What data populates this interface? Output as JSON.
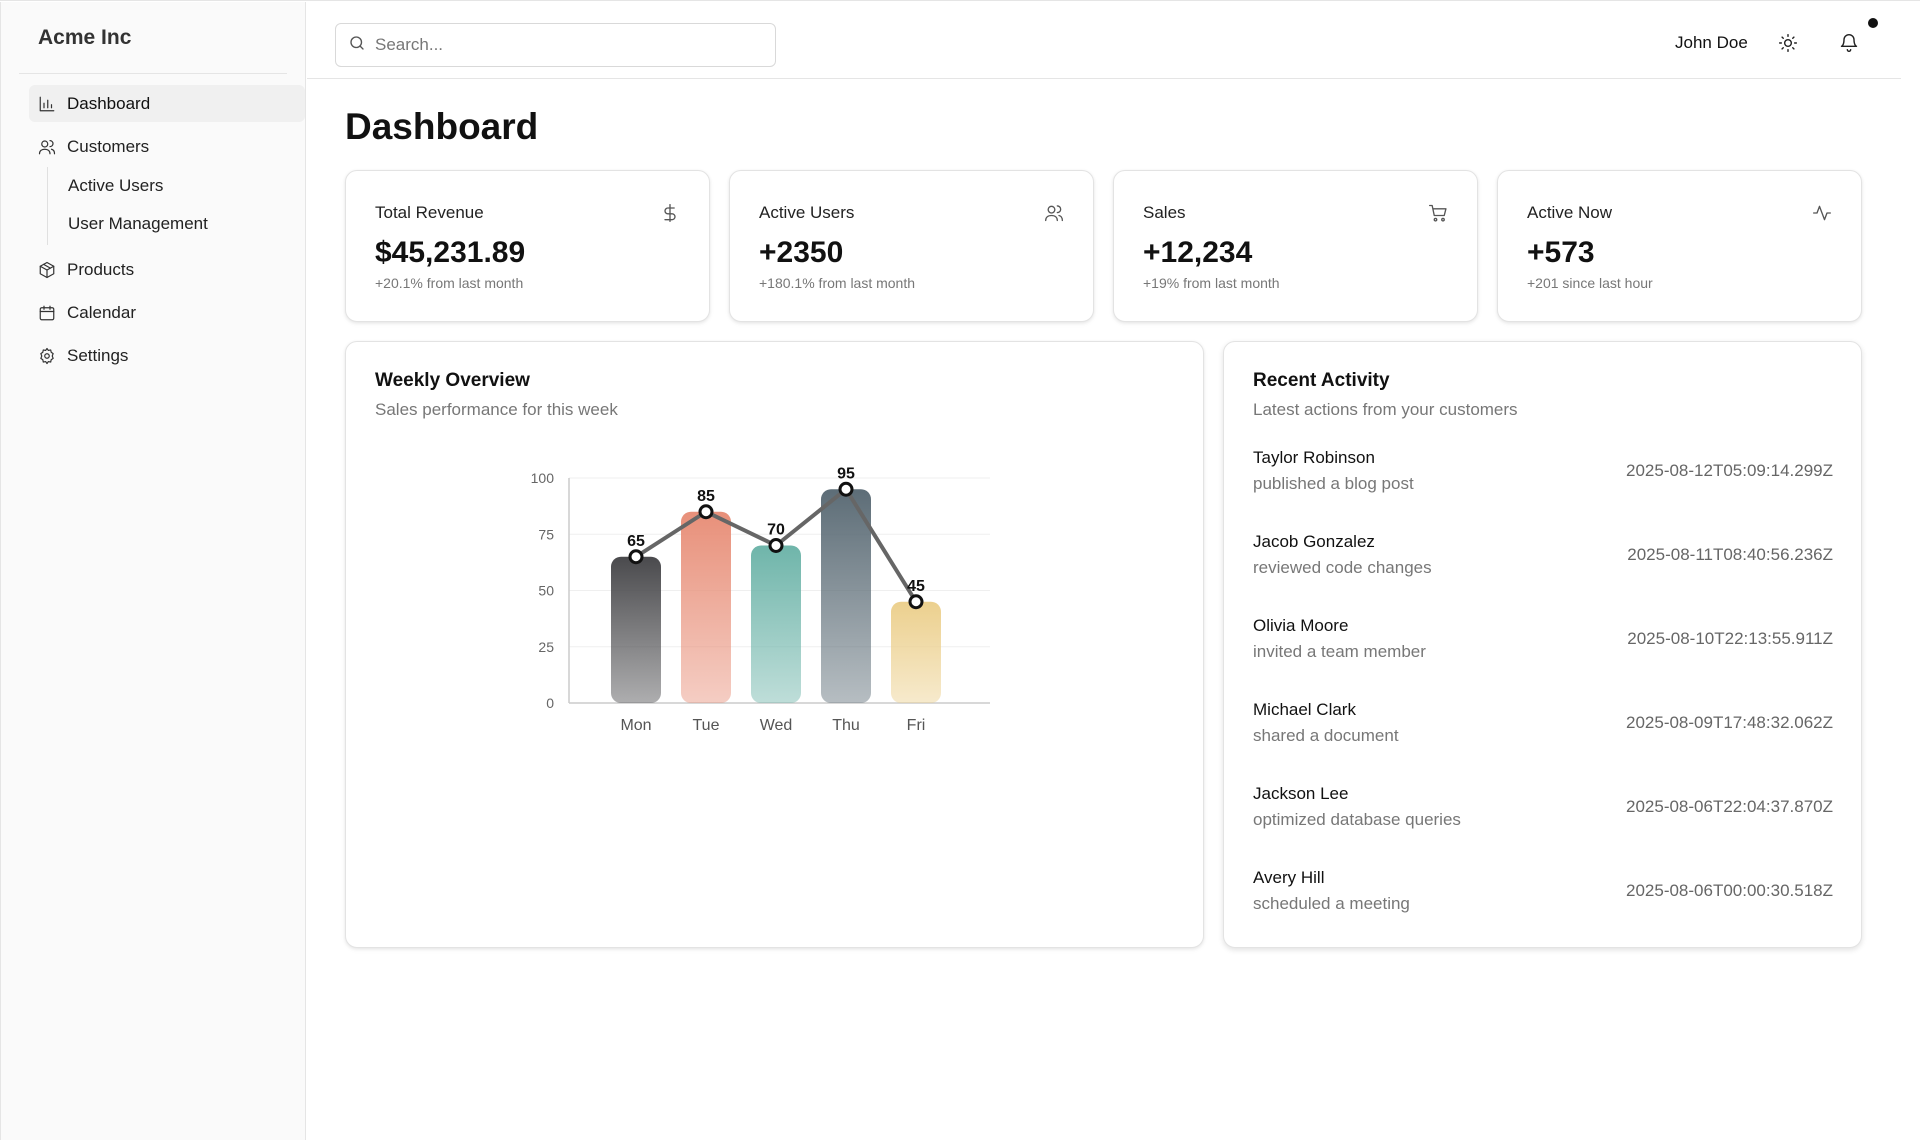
{
  "brand": "Acme Inc",
  "sidebar": {
    "items": [
      {
        "label": "Dashboard",
        "icon": "bar-chart-icon"
      },
      {
        "label": "Customers",
        "icon": "users-icon"
      },
      {
        "label": "Products",
        "icon": "package-icon"
      },
      {
        "label": "Calendar",
        "icon": "calendar-icon"
      },
      {
        "label": "Settings",
        "icon": "gear-icon"
      }
    ],
    "sub_items": [
      {
        "label": "Active Users"
      },
      {
        "label": "User Management"
      }
    ],
    "active": "Dashboard"
  },
  "header": {
    "search_placeholder": "Search...",
    "user_name": "John Doe",
    "theme_icon": "sun-icon",
    "notification_icon": "bell-icon"
  },
  "page": {
    "title": "Dashboard"
  },
  "stats": [
    {
      "title": "Total Revenue",
      "value": "$45,231.89",
      "sub": "+20.1% from last month",
      "icon": "dollar-icon"
    },
    {
      "title": "Active Users",
      "value": "+2350",
      "sub": "+180.1% from last month",
      "icon": "users-icon"
    },
    {
      "title": "Sales",
      "value": "+12,234",
      "sub": "+19% from last month",
      "icon": "cart-icon"
    },
    {
      "title": "Active Now",
      "value": "+573",
      "sub": "+201 since last hour",
      "icon": "activity-icon"
    }
  ],
  "overview": {
    "title": "Weekly Overview",
    "description": "Sales performance for this week"
  },
  "chart_data": {
    "type": "bar",
    "categories": [
      "Mon",
      "Tue",
      "Wed",
      "Thu",
      "Fri"
    ],
    "values": [
      65,
      85,
      70,
      95,
      45
    ],
    "line_overlay": true,
    "ylim": [
      0,
      100
    ],
    "yticks": [
      0,
      25,
      50,
      75,
      100
    ],
    "grid": true,
    "title": "",
    "xlabel": "",
    "ylabel": "",
    "colors": [
      "#4a4a4d",
      "#e8907a",
      "#6fb5aa",
      "#5d6d77",
      "#ecd08e"
    ],
    "line_color": "#666666"
  },
  "activity": {
    "title": "Recent Activity",
    "description": "Latest actions from your customers",
    "items": [
      {
        "name": "Taylor Robinson",
        "action": "published a blog post",
        "time": "2025-08-12T05:09:14.299Z"
      },
      {
        "name": "Jacob Gonzalez",
        "action": "reviewed code changes",
        "time": "2025-08-11T08:40:56.236Z"
      },
      {
        "name": "Olivia Moore",
        "action": "invited a team member",
        "time": "2025-08-10T22:13:55.911Z"
      },
      {
        "name": "Michael Clark",
        "action": "shared a document",
        "time": "2025-08-09T17:48:32.062Z"
      },
      {
        "name": "Jackson Lee",
        "action": "optimized database queries",
        "time": "2025-08-06T22:04:37.870Z"
      },
      {
        "name": "Avery Hill",
        "action": "scheduled a meeting",
        "time": "2025-08-06T00:00:30.518Z"
      }
    ]
  }
}
